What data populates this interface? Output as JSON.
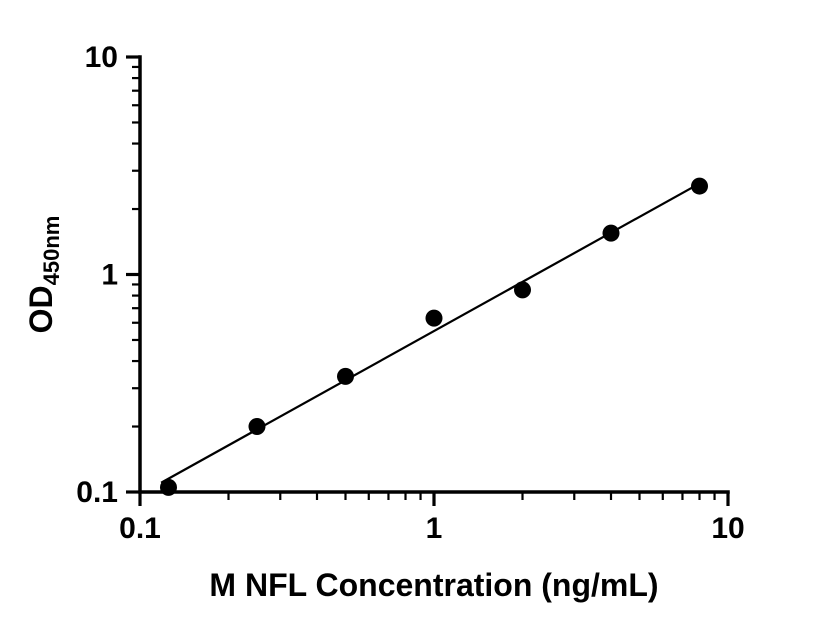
{
  "chart_data": {
    "type": "scatter",
    "title": "",
    "xlabel": "M NFL Concentration (ng/mL)",
    "ylabel": "OD",
    "ylabel_subscript": "450nm",
    "xscale": "log",
    "yscale": "log",
    "xlim": [
      0.1,
      10
    ],
    "ylim": [
      0.1,
      10
    ],
    "grid": false,
    "legend": "none",
    "marker_color": "#000000",
    "line_color": "#000000",
    "axis_color": "#000000",
    "x_ticks": [
      {
        "value": 0.1,
        "label": "0.1"
      },
      {
        "value": 1,
        "label": "1"
      },
      {
        "value": 10,
        "label": "10"
      }
    ],
    "y_ticks": [
      {
        "value": 0.1,
        "label": "0.1"
      },
      {
        "value": 1,
        "label": "1"
      },
      {
        "value": 10,
        "label": "10"
      }
    ],
    "points": [
      {
        "x": 0.125,
        "y": 0.105
      },
      {
        "x": 0.25,
        "y": 0.2
      },
      {
        "x": 0.5,
        "y": 0.34
      },
      {
        "x": 1.0,
        "y": 0.63
      },
      {
        "x": 2.0,
        "y": 0.85
      },
      {
        "x": 4.0,
        "y": 1.55
      },
      {
        "x": 8.0,
        "y": 2.55
      }
    ],
    "fit_line": {
      "type": "linear-loglog",
      "x_start": 0.118,
      "x_end": 8.15
    }
  }
}
